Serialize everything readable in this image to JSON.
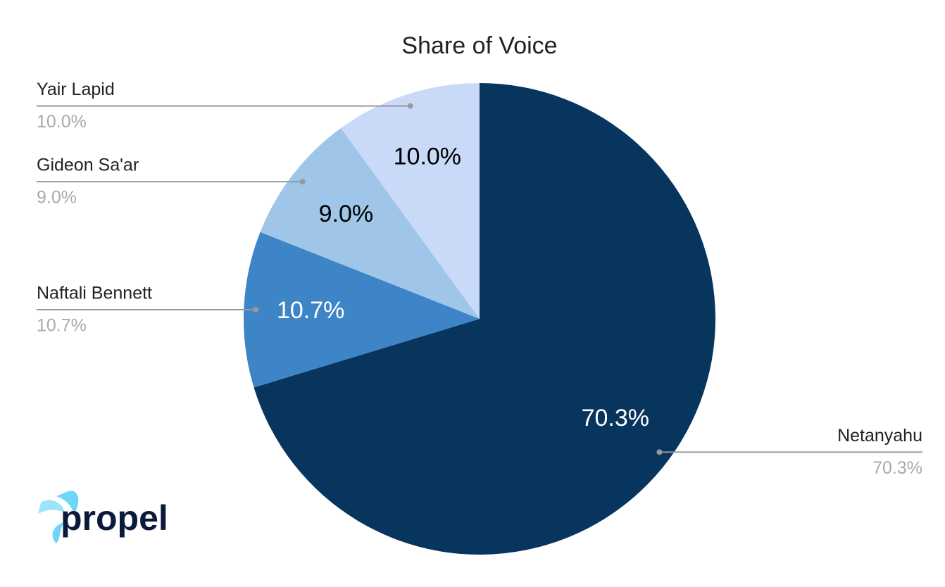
{
  "chart_data": {
    "type": "pie",
    "title": "Share of Voice",
    "categories": [
      "Netanyahu",
      "Naftali Bennett",
      "Gideon Sa'ar",
      "Yair Lapid"
    ],
    "values": [
      70.3,
      10.7,
      9.0,
      10.0
    ],
    "value_labels": [
      "70.3%",
      "10.7%",
      "9.0%",
      "10.0%"
    ],
    "colors": [
      "#08355e",
      "#3d85c6",
      "#9fc5e8",
      "#c9daf8"
    ]
  },
  "logo": "propel"
}
